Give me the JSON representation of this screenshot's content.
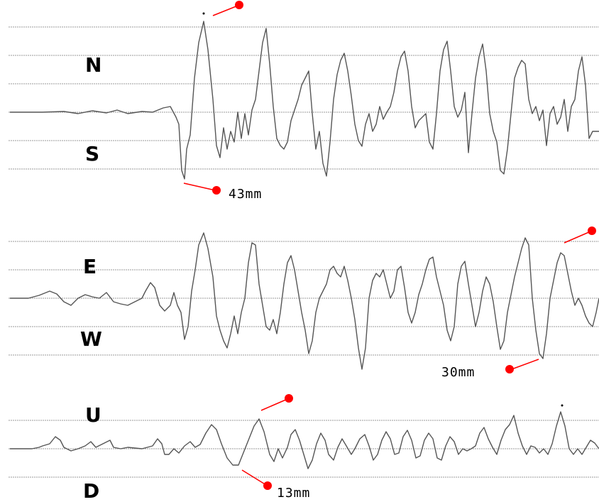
{
  "colors": {
    "background": "#ffffff",
    "trace": "#555555",
    "grid": "#9a9a9a",
    "marker": "#ff0000",
    "text": "#000000"
  },
  "chart_data": {
    "type": "line",
    "panels": [
      {
        "id": "ns",
        "labels": {
          "top": "N",
          "bottom": "S"
        },
        "amplitude_label": "43mm"
      },
      {
        "id": "ew",
        "labels": {
          "top": "E",
          "bottom": "W"
        },
        "amplitude_label": "30mm"
      },
      {
        "id": "ud",
        "labels": {
          "top": "U",
          "bottom": "D"
        },
        "amplitude_label": "13mm"
      }
    ]
  }
}
